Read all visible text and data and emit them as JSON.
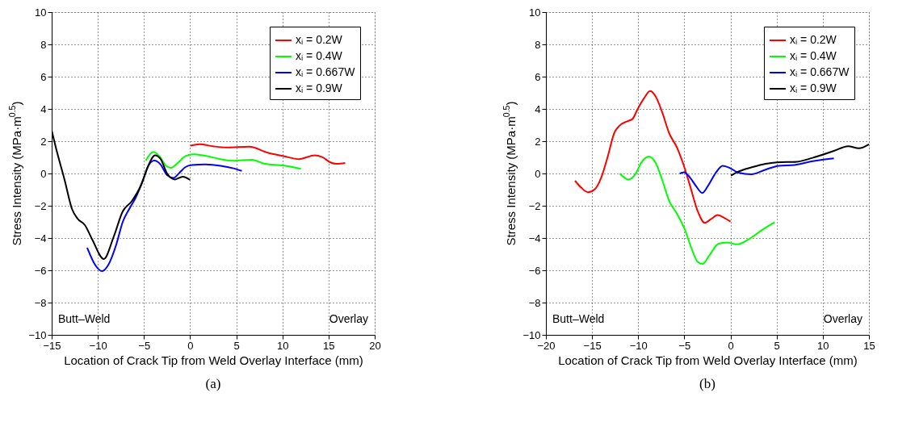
{
  "chart_data": [
    {
      "type": "line",
      "title": "(a)",
      "xlabel": "Location of Crack Tip from Weld Overlay Interface (mm)",
      "ylabel": "Stress Intensity (MPa·m$^{0.5}$)",
      "xlim": [
        -15,
        20
      ],
      "xticks": [
        -15,
        -10,
        -5,
        0,
        5,
        10,
        15,
        20
      ],
      "ylim": [
        -10,
        10
      ],
      "yticks": [
        -10,
        -8,
        -6,
        -4,
        -2,
        0,
        2,
        4,
        6,
        8,
        10
      ],
      "grid": true,
      "legend": "top right",
      "annotations": [
        "Butt–Weld",
        "Overlay"
      ],
      "series": [
        {
          "name": "xᵢ = 0.2W",
          "color": "#ff0000",
          "x": [
            0.05,
            1.05,
            2.45,
            3.9,
            6.4,
            8.4,
            10.1,
            11.8,
            13.5,
            14.3,
            15.2,
            15.9,
            16.8
          ],
          "values": [
            1.73,
            1.81,
            1.69,
            1.61,
            1.66,
            1.29,
            1.08,
            0.89,
            1.13,
            1.02,
            0.69,
            0.6,
            0.65
          ]
        },
        {
          "name": "xᵢ = 0.4W",
          "color": "#00ff00",
          "x": [
            -4.8,
            -4.0,
            -3.3,
            -2.6,
            -2.1,
            -1.35,
            -0.5,
            0.35,
            1.6,
            3.3,
            4.7,
            6.7,
            8.1,
            10.1,
            12.0
          ],
          "values": [
            0.8,
            1.34,
            1.05,
            0.48,
            0.35,
            0.65,
            1.08,
            1.19,
            1.1,
            0.89,
            0.79,
            0.85,
            0.6,
            0.5,
            0.29
          ]
        },
        {
          "name": "xᵢ = 0.667W",
          "color": "#0000ff",
          "x": [
            -11.15,
            -10.25,
            -9.55,
            -8.85,
            -8.0,
            -7.3,
            -6.6,
            -5.9,
            -5.0,
            -4.5,
            -3.9,
            -3.2,
            -2.5,
            -1.8,
            -1.1,
            -0.5,
            0.2,
            1.6,
            3.3,
            4.7,
            5.6
          ],
          "values": [
            -4.6,
            -5.7,
            -6.05,
            -5.65,
            -4.4,
            -3.0,
            -2.2,
            -1.5,
            -0.25,
            0.5,
            0.8,
            0.56,
            -0.1,
            -0.27,
            0.08,
            0.4,
            0.52,
            0.56,
            0.48,
            0.32,
            0.16
          ]
        },
        {
          "name": "xᵢ = 0.9W",
          "color": "#000000",
          "x": [
            -15,
            -14.5,
            -13.6,
            -12.8,
            -12.2,
            -11.4,
            -10.6,
            -9.35,
            -8.3,
            -7.3,
            -6.3,
            -5.3,
            -4.6,
            -3.8,
            -3.2,
            -2.5,
            -1.65,
            -0.8,
            0
          ],
          "values": [
            2.66,
            1.5,
            -0.4,
            -2.2,
            -2.8,
            -3.2,
            -4.1,
            -5.3,
            -3.95,
            -2.35,
            -1.7,
            -0.7,
            0.4,
            1.13,
            0.9,
            0,
            -0.37,
            -0.2,
            -0.4
          ]
        }
      ]
    },
    {
      "type": "line",
      "title": "(b)",
      "xlabel": "Location of Crack Tip from Weld Overlay Interface (mm)",
      "ylabel": "Stress Intensity (MPa·m$^{0.5}$)",
      "xlim": [
        -20,
        15
      ],
      "xticks": [
        -20,
        -15,
        -10,
        -5,
        0,
        5,
        10,
        15
      ],
      "ylim": [
        -10,
        10
      ],
      "yticks": [
        -10,
        -8,
        -6,
        -4,
        -2,
        0,
        2,
        4,
        6,
        8,
        10
      ],
      "grid": true,
      "legend": "top right",
      "annotations": [
        "Butt–Weld",
        "Overlay"
      ],
      "series": [
        {
          "name": "xᵢ = 0.2W",
          "color": "#ff0000",
          "x": [
            -16.85,
            -16.15,
            -15.45,
            -14.7,
            -14.0,
            -13.3,
            -12.6,
            -12.0,
            -11.2,
            -10.6,
            -10.1,
            -9.35,
            -8.7,
            -8.1,
            -7.4,
            -6.65,
            -5.8,
            -5.1,
            -4.4,
            -3.55,
            -2.8,
            -2.1,
            -1.4,
            -0.7,
            0
          ],
          "values": [
            -0.45,
            -0.89,
            -1.16,
            -0.97,
            -0.24,
            1.05,
            2.5,
            2.98,
            3.23,
            3.39,
            3.95,
            4.68,
            5.11,
            4.76,
            3.79,
            2.5,
            1.61,
            0.56,
            -0.73,
            -2.34,
            -3.06,
            -2.82,
            -2.58,
            -2.74,
            -2.98
          ]
        },
        {
          "name": "xᵢ = 0.4W",
          "color": "#00ff00",
          "x": [
            -12.0,
            -11.05,
            -10.35,
            -9.6,
            -8.85,
            -8.1,
            -7.4,
            -6.65,
            -5.8,
            -4.95,
            -4.25,
            -3.55,
            -3.0,
            -2.3,
            -1.3,
            -0.4,
            0.7,
            2.1,
            3.5,
            4.8
          ],
          "values": [
            0,
            -0.37,
            -0.08,
            0.73,
            1.05,
            0.65,
            -0.4,
            -1.69,
            -2.5,
            -3.47,
            -4.6,
            -5.48,
            -5.6,
            -5.08,
            -4.35,
            -4.27,
            -4.39,
            -4.03,
            -3.47,
            -3.02
          ]
        },
        {
          "name": "xᵢ = 0.667W",
          "color": "#0000ff",
          "x": [
            -5.5,
            -5.05,
            -4.4,
            -3.7,
            -3.05,
            -2.4,
            -1.55,
            -0.85,
            0,
            0.85,
            2.25,
            3.8,
            5.25,
            6.95,
            8.9,
            11.2
          ],
          "values": [
            0,
            0.08,
            -0.24,
            -0.81,
            -1.21,
            -0.73,
            0.08,
            0.48,
            0.32,
            0.05,
            -0.05,
            0.24,
            0.48,
            0.53,
            0.76,
            0.94
          ]
        },
        {
          "name": "xᵢ = 0.9W",
          "color": "#000000",
          "x": [
            0.05,
            0.7,
            2.4,
            3.8,
            5.0,
            7.2,
            8.9,
            11.2,
            12.75,
            13.9,
            15.0
          ],
          "values": [
            -0.13,
            0.08,
            0.4,
            0.6,
            0.69,
            0.73,
            0.97,
            1.4,
            1.69,
            1.56,
            1.81
          ]
        }
      ]
    }
  ]
}
